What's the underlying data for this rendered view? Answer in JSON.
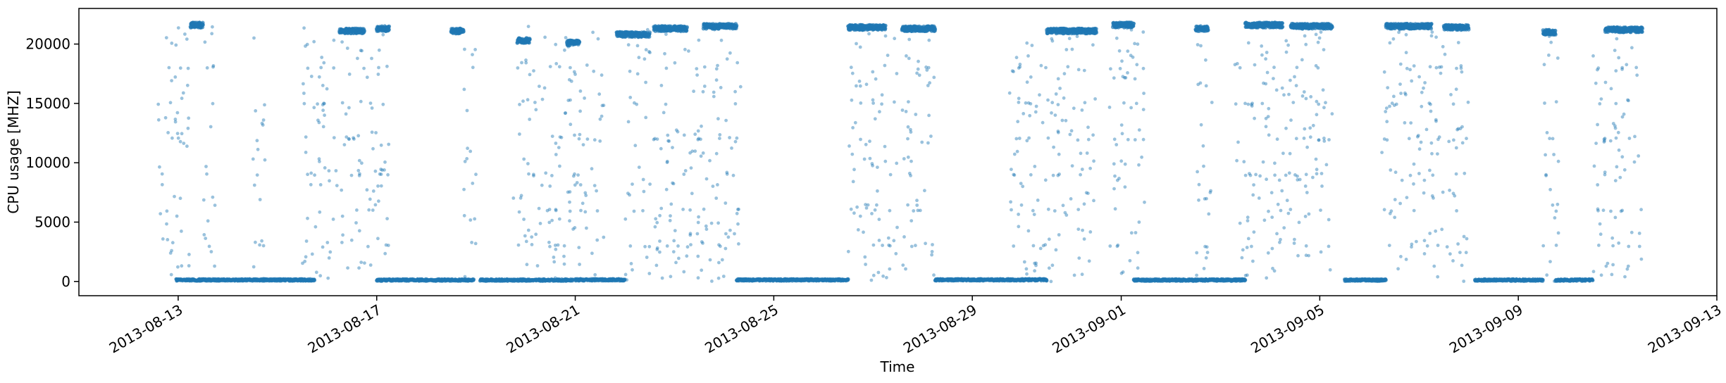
{
  "chart_data": {
    "type": "scatter",
    "title": "",
    "xlabel": "Time",
    "ylabel": "CPU usage [MHZ]",
    "xlim": [
      "2013-08-11",
      "2013-09-13"
    ],
    "ylim": [
      -1200,
      23000
    ],
    "x_ticks": [
      "2013-08-13",
      "2013-08-17",
      "2013-08-21",
      "2013-08-25",
      "2013-08-29",
      "2013-09-01",
      "2013-09-05",
      "2013-09-09",
      "2013-09-13"
    ],
    "y_ticks": [
      0,
      5000,
      10000,
      15000,
      20000
    ],
    "grid": false,
    "legend": "none",
    "marker_color": "#1f77b4",
    "marker_alpha": 0.45,
    "series": [
      {
        "idle_runs": [
          [
            "2013-08-12T23:00",
            "2013-08-15T18:00",
            130
          ],
          [
            "2013-08-17T00:00",
            "2013-08-18T23:00",
            120
          ],
          [
            "2013-08-19T02:00",
            "2013-08-20T23:00",
            120
          ],
          [
            "2013-08-21T00:00",
            "2013-08-22T00:00",
            140
          ],
          [
            "2013-08-24T06:00",
            "2013-08-26T12:00",
            130
          ],
          [
            "2013-08-28T06:00",
            "2013-08-30T12:00",
            140
          ],
          [
            "2013-09-01T06:00",
            "2013-09-03T12:00",
            120
          ],
          [
            "2013-09-05T12:00",
            "2013-09-06T08:00",
            120
          ],
          [
            "2013-09-08T03:00",
            "2013-09-09T12:00",
            120
          ],
          [
            "2013-09-09T18:00",
            "2013-09-10T12:00",
            120
          ]
        ],
        "high_runs": [
          [
            "2013-08-13T06:00",
            "2013-08-13T12:00",
            21600
          ],
          [
            "2013-08-16T06:00",
            "2013-08-16T18:00",
            21100
          ],
          [
            "2013-08-17T00:00",
            "2013-08-17T06:00",
            21300
          ],
          [
            "2013-08-18T12:00",
            "2013-08-18T18:00",
            21100
          ],
          [
            "2013-08-19T20:00",
            "2013-08-20T02:00",
            20300
          ],
          [
            "2013-08-20T20:00",
            "2013-08-21T02:00",
            20100
          ],
          [
            "2013-08-21T20:00",
            "2013-08-22T12:00",
            20800
          ],
          [
            "2013-08-22T14:00",
            "2013-08-23T06:00",
            21300
          ],
          [
            "2013-08-23T14:00",
            "2013-08-24T06:00",
            21500
          ],
          [
            "2013-08-26T12:00",
            "2013-08-27T06:00",
            21400
          ],
          [
            "2013-08-27T14:00",
            "2013-08-28T06:00",
            21300
          ],
          [
            "2013-08-30T12:00",
            "2013-08-31T12:00",
            21100
          ],
          [
            "2013-08-31T20:00",
            "2013-09-01T06:00",
            21600
          ],
          [
            "2013-09-02T12:00",
            "2013-09-02T18:00",
            21300
          ],
          [
            "2013-09-03T12:00",
            "2013-09-04T06:00",
            21600
          ],
          [
            "2013-09-04T10:00",
            "2013-09-05T06:00",
            21500
          ],
          [
            "2013-09-06T08:00",
            "2013-09-07T06:00",
            21500
          ],
          [
            "2013-09-07T12:00",
            "2013-09-08T00:00",
            21400
          ],
          [
            "2013-09-09T12:00",
            "2013-09-09T18:00",
            21000
          ],
          [
            "2013-09-10T18:00",
            "2013-09-11T12:00",
            21200
          ]
        ],
        "sparse_bursts": [
          [
            "2013-08-12T14:00",
            "2013-08-13T06:00"
          ],
          [
            "2013-08-13T12:00",
            "2013-08-13T18:00"
          ],
          [
            "2013-08-14T12:00",
            "2013-08-14T18:00"
          ],
          [
            "2013-08-15T12:00",
            "2013-08-17T06:00"
          ],
          [
            "2013-08-18T18:00",
            "2013-08-19T00:00"
          ],
          [
            "2013-08-19T18:00",
            "2013-08-21T06:00"
          ],
          [
            "2013-08-21T08:00",
            "2013-08-21T14:00"
          ],
          [
            "2013-08-22T00:00",
            "2013-08-24T08:00"
          ],
          [
            "2013-08-26T12:00",
            "2013-08-27T12:00"
          ],
          [
            "2013-08-27T14:00",
            "2013-08-28T06:00"
          ],
          [
            "2013-08-29T18:00",
            "2013-08-31T12:00"
          ],
          [
            "2013-08-31T18:00",
            "2013-09-01T12:00"
          ],
          [
            "2013-09-02T12:00",
            "2013-09-02T20:00"
          ],
          [
            "2013-09-03T06:00",
            "2013-09-05T06:00"
          ],
          [
            "2013-09-06T06:00",
            "2013-09-08T00:00"
          ],
          [
            "2013-09-09T12:00",
            "2013-09-09T20:00"
          ],
          [
            "2013-09-10T12:00",
            "2013-09-11T12:00"
          ]
        ]
      }
    ]
  }
}
